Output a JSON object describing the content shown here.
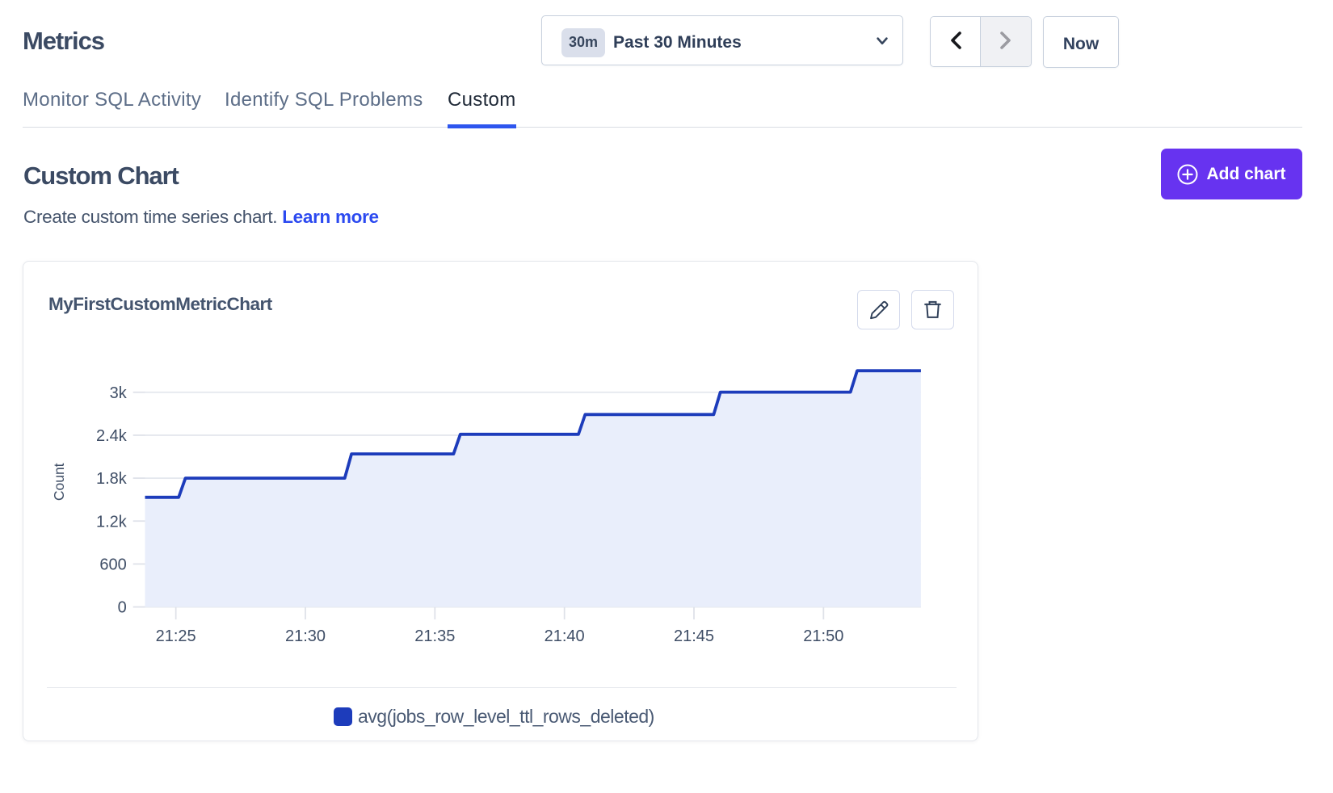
{
  "header": {
    "title": "Metrics",
    "time_picker": {
      "badge": "30m",
      "label": "Past 30 Minutes"
    },
    "now_label": "Now"
  },
  "tabs": {
    "items": [
      {
        "label": "Monitor SQL Activity",
        "active": false
      },
      {
        "label": "Identify SQL Problems",
        "active": false
      },
      {
        "label": "Custom",
        "active": true
      }
    ]
  },
  "section": {
    "title": "Custom Chart",
    "subtitle": "Create custom time series chart.",
    "learn_more": "Learn more",
    "add_chart_label": "Add chart"
  },
  "colors": {
    "accent_purple": "#6733f0",
    "link_blue": "#2b49f0",
    "tab_underline": "#2e56ee",
    "series_line": "#1d3cbb",
    "series_fill": "#e9eefb",
    "grid_line": "#e4e7ed",
    "axis_tick": "#dfe2e9"
  },
  "chart_data": {
    "type": "area",
    "step": true,
    "title": "MyFirstCustomMetricChart",
    "ylabel": "Count",
    "x_unit": "minutes after 21:00",
    "x_range": [
      23.81,
      53.76
    ],
    "y_range": [
      0,
      3380
    ],
    "x_ticks": [
      {
        "t": 25,
        "label": "21:25"
      },
      {
        "t": 30,
        "label": "21:30"
      },
      {
        "t": 35,
        "label": "21:35"
      },
      {
        "t": 40,
        "label": "21:40"
      },
      {
        "t": 45,
        "label": "21:45"
      },
      {
        "t": 50,
        "label": "21:50"
      }
    ],
    "y_ticks": [
      {
        "v": 0,
        "label": "0"
      },
      {
        "v": 600,
        "label": "600"
      },
      {
        "v": 1200,
        "label": "1.2k"
      },
      {
        "v": 1800,
        "label": "1.8k"
      },
      {
        "v": 2400,
        "label": "2.4k"
      },
      {
        "v": 3000,
        "label": "3k"
      }
    ],
    "series": [
      {
        "name": "avg(jobs_row_level_ttl_rows_deleted)",
        "color": "#1d3cbb",
        "fill": "#e9eefb",
        "points": [
          [
            23.81,
            1532
          ],
          [
            25.11,
            1532
          ],
          [
            25.37,
            1800
          ],
          [
            31.52,
            1800
          ],
          [
            31.78,
            2138
          ],
          [
            35.72,
            2138
          ],
          [
            35.98,
            2413
          ],
          [
            40.54,
            2413
          ],
          [
            40.8,
            2689
          ],
          [
            45.76,
            2689
          ],
          [
            46.02,
            3002
          ],
          [
            51.04,
            3002
          ],
          [
            51.3,
            3301
          ],
          [
            53.76,
            3301
          ]
        ]
      }
    ]
  }
}
